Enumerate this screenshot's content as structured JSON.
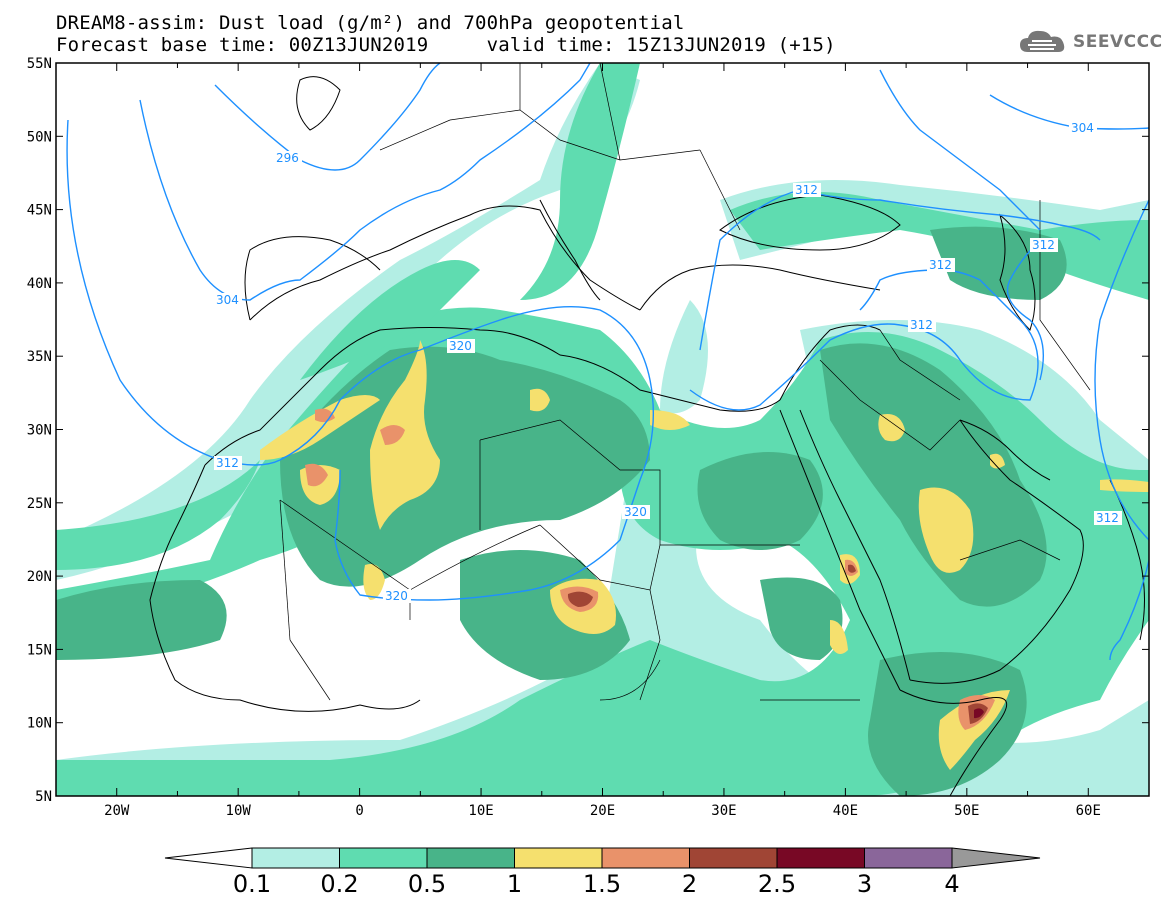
{
  "header": {
    "title_line1": "DREAM8-assim: Dust load (g/m²) and 700hPa geopotential",
    "title_line2": "Forecast base time: 00Z13JUN2019     valid time: 15Z13JUN2019 (+15)",
    "logo_text": "SEEVCCC",
    "logo_icon": "cloud-icon"
  },
  "map": {
    "lon_range": [
      -25,
      65
    ],
    "lat_range": [
      5,
      55
    ],
    "lat_labels": [
      "55N",
      "50N",
      "45N",
      "40N",
      "35N",
      "30N",
      "25N",
      "20N",
      "15N",
      "10N",
      "5N"
    ],
    "lon_labels": [
      "20W",
      "10W",
      "0",
      "10E",
      "20E",
      "30E",
      "40E",
      "50E",
      "60E"
    ],
    "contour_color": "#1e90ff",
    "contour_labels": [
      "296",
      "304",
      "312",
      "320",
      "320",
      "320",
      "312",
      "312",
      "312",
      "312",
      "312",
      "304"
    ]
  },
  "colorbar": {
    "colors": [
      "#b3eee4",
      "#5fdcb0",
      "#48b489",
      "#f5e06e",
      "#e9926a",
      "#a04535",
      "#780825",
      "#8a669a",
      "#999999"
    ],
    "labels": [
      "0.1",
      "0.2",
      "0.5",
      "1",
      "1.5",
      "2",
      "2.5",
      "3",
      "4"
    ]
  }
}
